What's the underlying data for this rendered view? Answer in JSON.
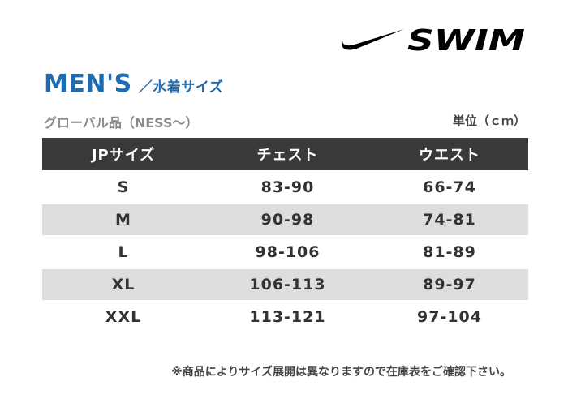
{
  "logo": {
    "text": "SWIM",
    "icon": "swoosh-icon"
  },
  "title": {
    "main": "MEN'S",
    "sub": "／水着サイズ"
  },
  "subtitle": "グローバル品（NESS〜）",
  "unit": "単位（ｃｍ）",
  "table": {
    "headers": [
      "JPサイズ",
      "チェスト",
      "ウエスト"
    ],
    "rows": [
      [
        "S",
        "83-90",
        "66-74"
      ],
      [
        "M",
        "90-98",
        "74-81"
      ],
      [
        "L",
        "98-106",
        "81-89"
      ],
      [
        "XL",
        "106-113",
        "89-97"
      ],
      [
        "XXL",
        "113-121",
        "97-104"
      ]
    ]
  },
  "footer": "※商品によりサイズ展開は異なりますので在庫表をご確認下さい。",
  "colors": {
    "title": "#1f6cb0",
    "header_bg": "#3a3a3a",
    "alt_row": "#dddddd"
  }
}
